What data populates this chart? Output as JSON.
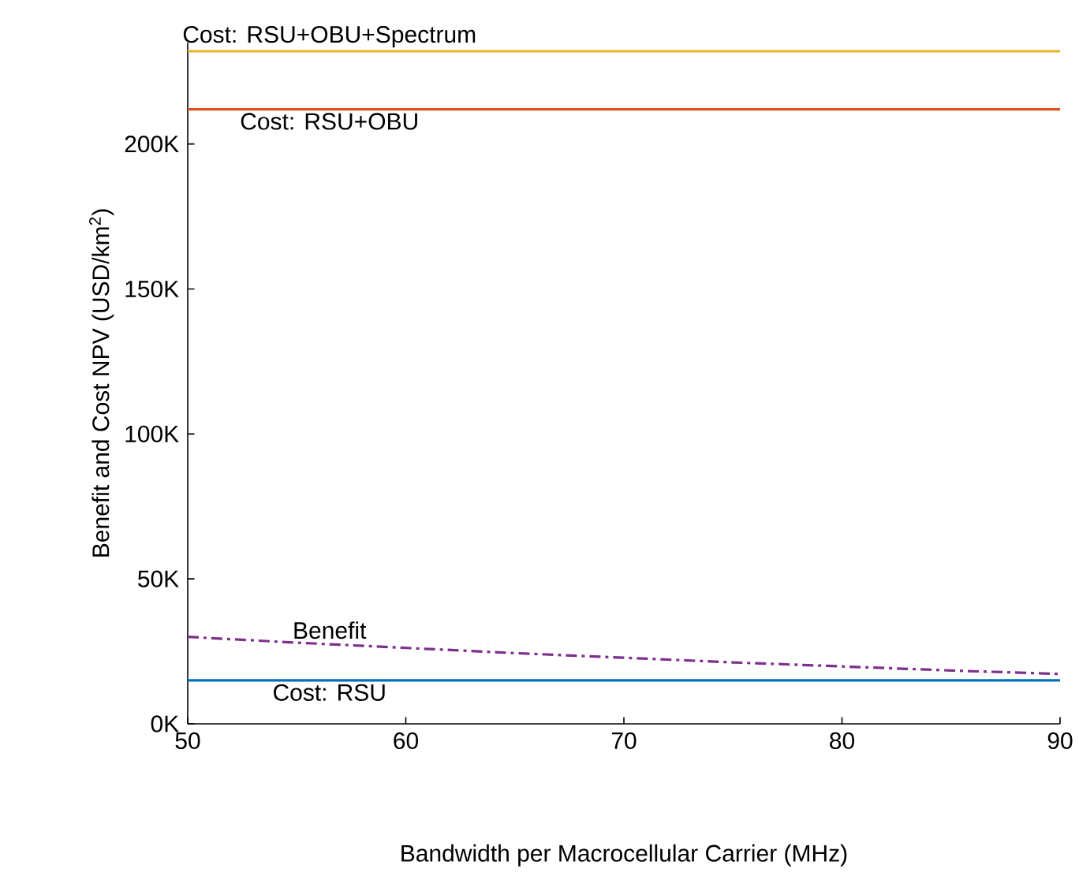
{
  "chart_data": {
    "type": "line",
    "xlabel": "Bandwidth per Macrocellular Carrier (MHz)",
    "ylabel": "Benefit and Cost NPV (USD/km$^{2}$)",
    "x": [
      50,
      55,
      60,
      65,
      70,
      75,
      80,
      85,
      90
    ],
    "series": [
      {
        "name": "Cost: RSU+OBU+Spectrum",
        "color": "#edb120",
        "line_style": "solid",
        "values": [
          232000,
          232000,
          232000,
          232000,
          232000,
          232000,
          232000,
          232000,
          232000
        ]
      },
      {
        "name": "Cost: RSU+OBU",
        "color": "#d95319",
        "line_style": "solid",
        "values": [
          212000,
          212000,
          212000,
          212000,
          212000,
          212000,
          212000,
          212000,
          212000
        ]
      },
      {
        "name": "Benefit",
        "color": "#7e2f8e",
        "line_style": "dashdot",
        "values": [
          30000,
          28000,
          26200,
          24400,
          22800,
          21200,
          19800,
          18400,
          17200
        ]
      },
      {
        "name": "Cost: RSU",
        "color": "#0072bd",
        "line_style": "solid",
        "values": [
          15000,
          15000,
          15000,
          15000,
          15000,
          15000,
          15000,
          15000,
          15000
        ]
      }
    ],
    "xlim": [
      50,
      90
    ],
    "ylim": [
      0,
      235000
    ],
    "xticks": [
      50,
      60,
      70,
      80,
      90
    ],
    "yticks": [
      {
        "value": 0,
        "label": "0K"
      },
      {
        "value": 50000,
        "label": "50K"
      },
      {
        "value": 100000,
        "label": "100K"
      },
      {
        "value": 150000,
        "label": "150K"
      },
      {
        "value": 200000,
        "label": "200K"
      }
    ],
    "grid": false,
    "marker": "none"
  }
}
